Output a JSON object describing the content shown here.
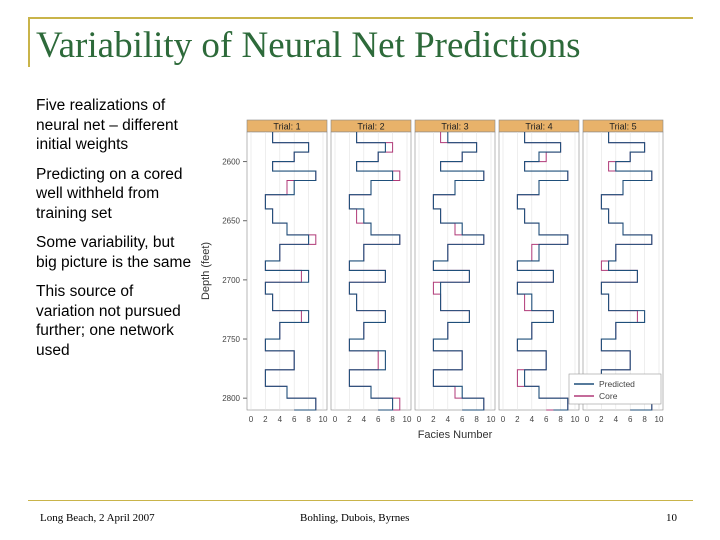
{
  "slide": {
    "title": "Variability of Neural Net Predictions",
    "bullets": [
      "Five realizations of neural net – different initial weights",
      "Predicting on a cored well withheld from training set",
      "Some variability, but big picture is the same",
      "This source of variation not pursued further; one network used"
    ]
  },
  "footer": {
    "left": "Long Beach, 2 April 2007",
    "center": "Bohling, Dubois, Byrnes",
    "page": "10"
  },
  "colors": {
    "title": "#2d6a3a",
    "accent_line": "#c9b44a",
    "panel_header_bg": "#e8b26a",
    "predicted": "#1f4f7a",
    "core": "#b03a78"
  },
  "chart_data": {
    "type": "line",
    "panels": [
      "Trial: 1",
      "Trial: 2",
      "Trial: 3",
      "Trial: 4",
      "Trial: 5"
    ],
    "xlabel": "Facies Number",
    "ylabel": "Depth (feet)",
    "xlim": [
      0,
      10
    ],
    "ylim": [
      2810,
      2575
    ],
    "y_reversed": true,
    "xticks": [
      0,
      2,
      4,
      6,
      8,
      10
    ],
    "yticks": [
      2600,
      2650,
      2700,
      2750,
      2800
    ],
    "legend": {
      "placement": "bottom-right",
      "entries": [
        "Predicted",
        "Core"
      ]
    },
    "core": {
      "depth": [
        2575,
        2584,
        2592,
        2600,
        2608,
        2616,
        2628,
        2640,
        2652,
        2662,
        2670,
        2684,
        2692,
        2702,
        2712,
        2726,
        2736,
        2750,
        2760,
        2776,
        2790,
        2800,
        2810
      ],
      "facies": [
        3,
        8,
        6,
        3,
        9,
        5,
        2,
        3,
        5,
        9,
        4,
        2,
        7,
        2,
        3,
        7,
        4,
        2,
        6,
        2,
        5,
        9,
        6
      ]
    },
    "predicted": [
      {
        "name": "Trial: 1",
        "facies": [
          3,
          8,
          6,
          3,
          9,
          6,
          2,
          3,
          5,
          8,
          4,
          2,
          8,
          2,
          3,
          8,
          4,
          2,
          6,
          2,
          5,
          9,
          6
        ]
      },
      {
        "name": "Trial: 2",
        "facies": [
          3,
          7,
          6,
          3,
          8,
          5,
          2,
          4,
          5,
          9,
          4,
          2,
          7,
          2,
          3,
          7,
          4,
          2,
          7,
          2,
          5,
          8,
          6
        ]
      },
      {
        "name": "Trial: 3",
        "facies": [
          4,
          8,
          6,
          3,
          9,
          5,
          2,
          3,
          6,
          9,
          4,
          2,
          7,
          3,
          3,
          7,
          4,
          2,
          6,
          2,
          6,
          9,
          6
        ]
      },
      {
        "name": "Trial: 4",
        "facies": [
          3,
          8,
          5,
          3,
          9,
          5,
          2,
          3,
          5,
          9,
          5,
          2,
          7,
          2,
          4,
          7,
          4,
          2,
          6,
          3,
          5,
          9,
          7
        ]
      },
      {
        "name": "Trial: 5",
        "facies": [
          3,
          8,
          6,
          4,
          9,
          5,
          2,
          3,
          5,
          9,
          4,
          3,
          7,
          2,
          3,
          8,
          4,
          2,
          6,
          2,
          5,
          9,
          6
        ]
      }
    ]
  }
}
